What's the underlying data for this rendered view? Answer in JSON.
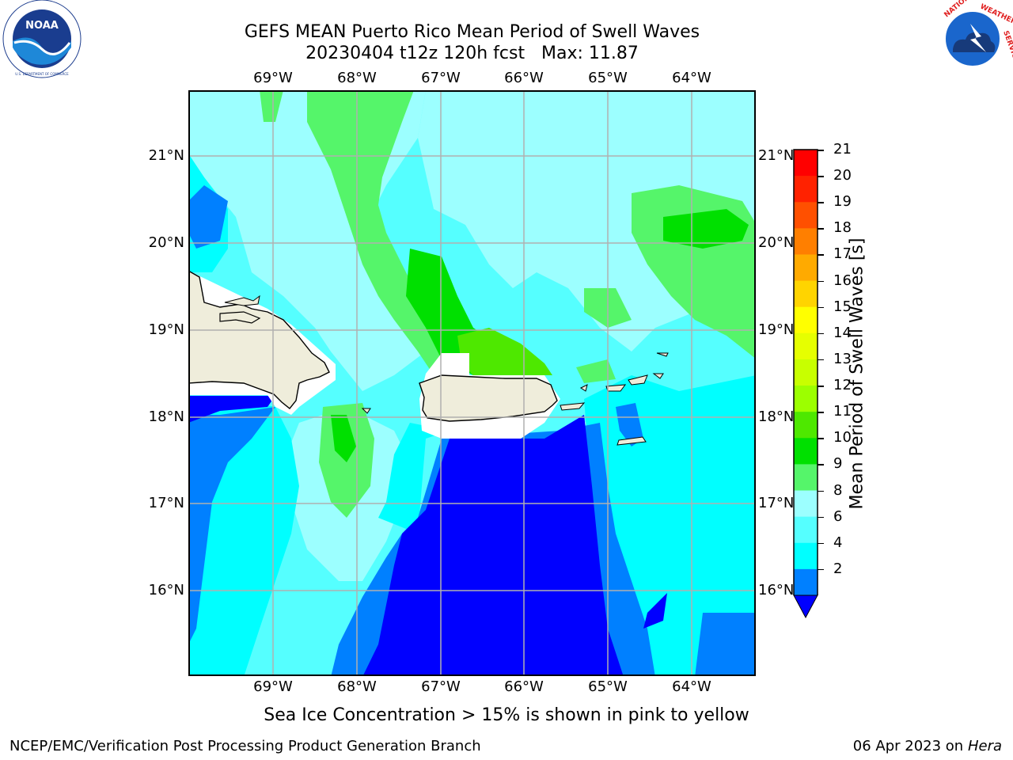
{
  "header": {
    "title_line1": "GEFS MEAN Puerto Rico Mean Period of Swell Waves",
    "title_line2": "20230404 t12z 120h fcst   Max: 11.87"
  },
  "logos": {
    "left": {
      "icon": "noaa-logo-icon",
      "text": "NOAA",
      "ring_text": "NATIONAL OCEANIC AND ATMOSPHERIC ADMINISTRATION · U.S. DEPARTMENT OF COMMERCE"
    },
    "right": {
      "icon": "nws-logo-icon",
      "ring_text": "NATIONAL WEATHER SERVICE"
    }
  },
  "map": {
    "lon_labels": [
      "69°W",
      "68°W",
      "67°W",
      "66°W",
      "65°W",
      "64°W"
    ],
    "lat_labels": [
      "21°N",
      "20°N",
      "19°N",
      "18°N",
      "17°N",
      "16°N"
    ],
    "land_color": "#efeddb",
    "gridline_color": "#b0b0b0"
  },
  "colorbar": {
    "label": "Mean Period of Swell Waves [s]",
    "ticks": [
      "21",
      "20",
      "19",
      "18",
      "17",
      "16",
      "15",
      "14",
      "13",
      "12",
      "11",
      "10",
      "9",
      "8",
      "6",
      "4",
      "2"
    ],
    "colors": [
      "#ff0000",
      "#ff2200",
      "#ff5000",
      "#ff7f00",
      "#ffaa00",
      "#ffd400",
      "#ffff00",
      "#e6ff00",
      "#c8ff00",
      "#9cff00",
      "#4ee800",
      "#00e000",
      "#55f56a",
      "#9cffff",
      "#55ffff",
      "#00ffff",
      "#0080ff"
    ],
    "extend_color": "#0000ff"
  },
  "caption": "Sea Ice Concentration > 15% is shown in pink to yellow",
  "footer": {
    "left": "NCEP/EMC/Verification Post Processing Product Generation Branch",
    "right_prefix": "06 Apr 2023 on ",
    "right_host": "Hera"
  }
}
